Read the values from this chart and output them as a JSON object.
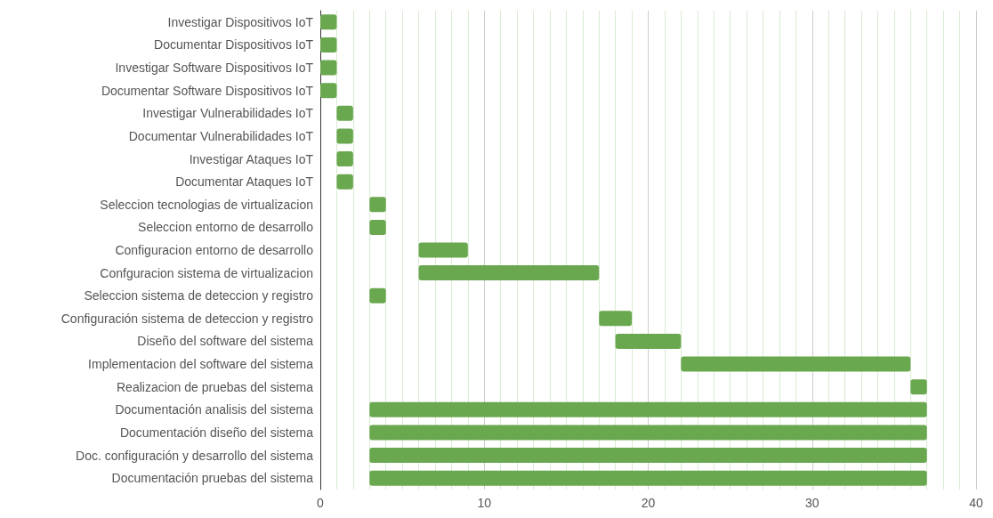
{
  "chart_data": {
    "type": "bar",
    "orientation": "horizontal",
    "categories": [
      "Investigar Dispositivos IoT",
      "Documentar Dispositivos IoT",
      "Investigar Software Dispositivos IoT",
      "Documentar Software Dispositivos IoT",
      "Investigar Vulnerabilidades IoT",
      "Documentar Vulnerabilidades IoT",
      "Investigar Ataques IoT",
      "Documentar Ataques IoT",
      "Seleccion tecnologias de virtualizacion",
      "Seleccion entorno de desarrollo",
      "Configuracion entorno de desarrollo",
      "Confguracion sistema de virtualizacion",
      "Seleccion sistema de deteccion y registro",
      "Configuración sistema de deteccion y registro",
      "Diseño del software del sistema",
      "Implementacion del software del sistema",
      "Realizacion de pruebas del sistema",
      "Documentación analisis del sistema",
      "Documentación diseño del sistema",
      "Doc. configuración y desarrollo del sistema",
      "Documentación pruebas del sistema"
    ],
    "base": [
      0,
      0,
      0,
      0,
      1,
      1,
      1,
      1,
      3,
      3,
      6,
      6,
      3,
      17,
      18,
      22,
      36,
      3,
      3,
      3,
      3
    ],
    "values": [
      1,
      1,
      1,
      1,
      1,
      1,
      1,
      1,
      1,
      1,
      3,
      11,
      1,
      2,
      4,
      14,
      1,
      34,
      34,
      34,
      34
    ],
    "color": "#6aa84f",
    "xlim": [
      0,
      40
    ],
    "xticks": [
      0,
      {
        "value": 1,
        "label": null
      },
      {
        "value": 2,
        "label": null
      },
      {
        "value": 3,
        "label": null
      },
      {
        "value": 4,
        "label": null
      },
      {
        "value": 5,
        "label": null
      },
      {
        "value": 6,
        "label": null
      },
      {
        "value": 7,
        "label": null
      },
      {
        "value": 8,
        "label": null
      },
      {
        "value": 9,
        "label": null
      },
      10,
      {
        "value": 11,
        "label": null
      },
      {
        "value": 12,
        "label": null
      },
      {
        "value": 13,
        "label": null
      },
      {
        "value": 14,
        "label": null
      },
      {
        "value": 15,
        "label": null
      },
      {
        "value": 16,
        "label": null
      },
      {
        "value": 17,
        "label": null
      },
      {
        "value": 18,
        "label": null
      },
      {
        "value": 19,
        "label": null
      },
      20,
      {
        "value": 21,
        "label": null
      },
      {
        "value": 22,
        "label": null
      },
      {
        "value": 23,
        "label": null
      },
      {
        "value": 24,
        "label": null
      },
      {
        "value": 25,
        "label": null
      },
      {
        "value": 26,
        "label": null
      },
      {
        "value": 27,
        "label": null
      },
      {
        "value": 28,
        "label": null
      },
      {
        "value": 29,
        "label": null
      },
      30,
      {
        "value": 31,
        "label": null
      },
      {
        "value": 32,
        "label": null
      },
      {
        "value": 33,
        "label": null
      },
      {
        "value": 34,
        "label": null
      },
      {
        "value": 35,
        "label": null
      },
      {
        "value": 36,
        "label": null
      },
      {
        "value": 37,
        "label": null
      },
      {
        "value": 38,
        "label": null
      },
      {
        "value": 39,
        "label": null
      },
      40
    ],
    "grid": "x"
  }
}
